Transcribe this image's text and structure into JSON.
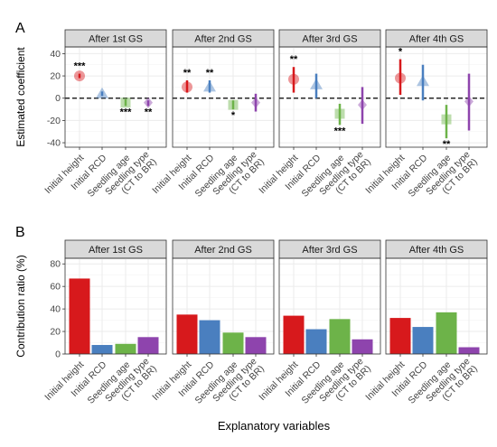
{
  "figure": {
    "x_axis_title": "Explanatory variables",
    "categories": [
      "Initial height",
      "Initial RCD",
      "Seedling age",
      "Seedling type\n(CT to BR)"
    ],
    "colors": {
      "Initial height": "#d7191c",
      "Initial RCD": "#4a7fbf",
      "Seedling age": "#6db349",
      "Seedling type\n(CT to BR)": "#8e44ad"
    }
  },
  "chart_data": [
    {
      "type": "scatter",
      "panel_label": "A",
      "ylabel": "Estimated coefficient",
      "ylim": [
        -44,
        46
      ],
      "yticks": [
        -40,
        -20,
        0,
        20,
        40
      ],
      "grid": true,
      "reference_line": 0,
      "marker_shapes": [
        "circle",
        "triangle",
        "square",
        "diamond"
      ],
      "facets": [
        {
          "title": "After 1st GS",
          "points": [
            {
              "category": "Initial height",
              "estimate": 20,
              "lower": 18,
              "upper": 22,
              "label": "***"
            },
            {
              "category": "Initial RCD",
              "estimate": 4,
              "lower": 2,
              "upper": 6,
              "label": ""
            },
            {
              "category": "Seedling age",
              "estimate": -4,
              "lower": -7,
              "upper": -1,
              "label": "***"
            },
            {
              "category": "Seedling type\n(CT to BR)",
              "estimate": -4,
              "lower": -7,
              "upper": -2,
              "label": "**"
            }
          ]
        },
        {
          "title": "After 2nd GS",
          "points": [
            {
              "category": "Initial height",
              "estimate": 10,
              "lower": 5,
              "upper": 16,
              "label": "**"
            },
            {
              "category": "Initial RCD",
              "estimate": 10,
              "lower": 5,
              "upper": 16,
              "label": "**"
            },
            {
              "category": "Seedling age",
              "estimate": -6,
              "lower": -10,
              "upper": -2,
              "label": "*"
            },
            {
              "category": "Seedling type\n(CT to BR)",
              "estimate": -4,
              "lower": -12,
              "upper": 4,
              "label": ""
            }
          ]
        },
        {
          "title": "After 3rd GS",
          "points": [
            {
              "category": "Initial height",
              "estimate": 17,
              "lower": 5,
              "upper": 28,
              "label": "**"
            },
            {
              "category": "Initial RCD",
              "estimate": 12,
              "lower": 0,
              "upper": 22,
              "label": ""
            },
            {
              "category": "Seedling age",
              "estimate": -14,
              "lower": -24,
              "upper": -5,
              "label": "***"
            },
            {
              "category": "Seedling type\n(CT to BR)",
              "estimate": -6,
              "lower": -23,
              "upper": 10,
              "label": ""
            }
          ]
        },
        {
          "title": "After 4th GS",
          "points": [
            {
              "category": "Initial height",
              "estimate": 18,
              "lower": 3,
              "upper": 35,
              "label": "*"
            },
            {
              "category": "Initial RCD",
              "estimate": 15,
              "lower": -2,
              "upper": 30,
              "label": ""
            },
            {
              "category": "Seedling age",
              "estimate": -19,
              "lower": -36,
              "upper": -6,
              "label": "**"
            },
            {
              "category": "Seedling type\n(CT to BR)",
              "estimate": -3,
              "lower": -29,
              "upper": 22,
              "label": ""
            }
          ]
        }
      ]
    },
    {
      "type": "bar",
      "panel_label": "B",
      "ylabel": "Contribution ratio (%)",
      "ylim": [
        0,
        85
      ],
      "yticks": [
        0,
        20,
        40,
        60,
        80
      ],
      "grid": true,
      "facets": [
        {
          "title": "After 1st GS",
          "values": [
            67,
            8,
            9,
            15
          ]
        },
        {
          "title": "After 2nd GS",
          "values": [
            35,
            30,
            19,
            15
          ]
        },
        {
          "title": "After 3rd GS",
          "values": [
            34,
            22,
            31,
            13
          ]
        },
        {
          "title": "After 4th GS",
          "values": [
            32,
            24,
            37,
            6
          ]
        }
      ]
    }
  ]
}
